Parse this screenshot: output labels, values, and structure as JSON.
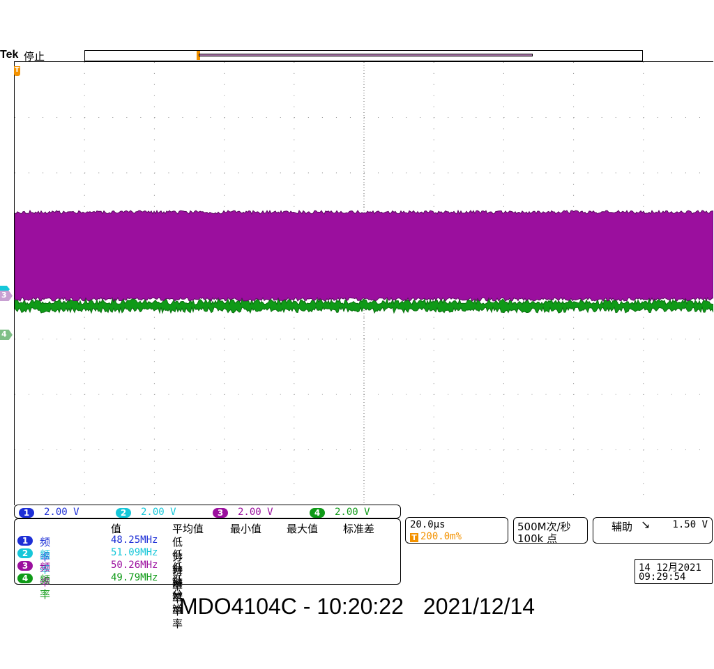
{
  "topbar": {
    "brand": "Tek",
    "status": "停止"
  },
  "colors": {
    "ch1": "#1d2fd6",
    "ch2": "#16c7d9",
    "ch3": "#9b0f9e",
    "ch4": "#0f9a17",
    "trigger": "#f39200"
  },
  "markers": {
    "trigger": "T",
    "ch3": "3",
    "ch4": "4",
    "ch2": "2"
  },
  "channels": [
    {
      "num": "1",
      "scale": "2.00 V"
    },
    {
      "num": "2",
      "scale": "2.00 V"
    },
    {
      "num": "3",
      "scale": "2.00 V"
    },
    {
      "num": "4",
      "scale": "2.00 V"
    }
  ],
  "measurements": {
    "headers": {
      "value": "值",
      "mean": "平均值",
      "min": "最小值",
      "max": "最大值",
      "std": "标准差"
    },
    "rows": [
      {
        "num": "1",
        "label": "频率",
        "value": "48.25MHz",
        "mean": "低分辨率"
      },
      {
        "num": "2",
        "label": "频率",
        "value": "51.09MHz",
        "mean": "低分辨率"
      },
      {
        "num": "3",
        "label": "频率",
        "value": "50.26MHz",
        "mean": "低分辨率"
      },
      {
        "num": "4",
        "label": "频率",
        "value": "49.79MHz",
        "mean": "低分辨率"
      }
    ]
  },
  "timebase": {
    "scale": "20.0µs",
    "trigger_chip": "T",
    "position": "200.0m%"
  },
  "acquisition": {
    "rate": "500M次/秒",
    "points": "100k 点"
  },
  "trigger": {
    "source": "辅助",
    "edge_icon": "falling-edge-icon",
    "edge_glyph": "↘",
    "level": "1.50 V"
  },
  "datetime": {
    "date": "14 12月2021",
    "time": "09:29:54"
  },
  "caption": {
    "model": "MDO4104C - 10:20:22",
    "date": "2021/12/14"
  }
}
